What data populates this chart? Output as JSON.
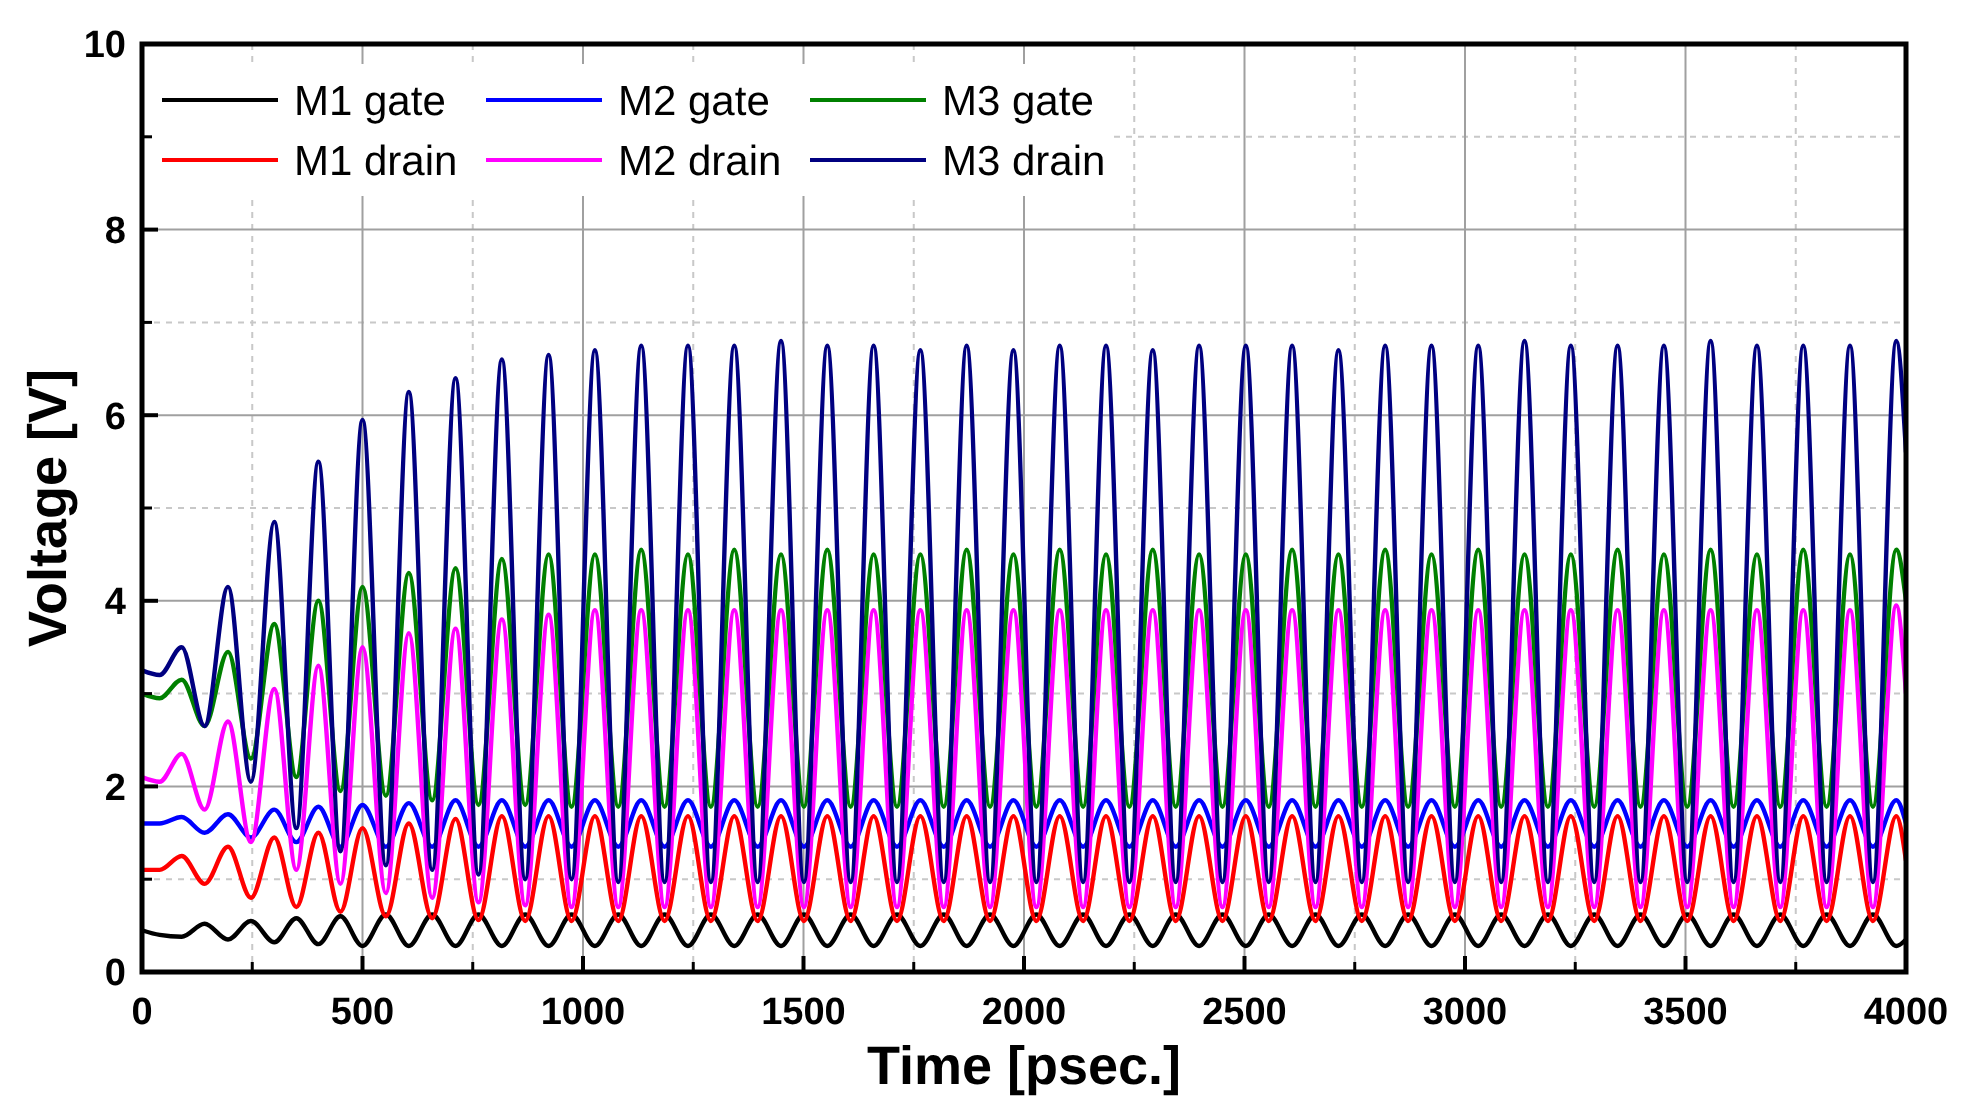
{
  "chart_data": {
    "type": "line",
    "xlabel": "Time [psec.]",
    "ylabel": "Voltage [V]",
    "x": [
      0,
      40,
      90,
      142,
      195,
      247,
      300,
      350,
      400,
      450,
      500,
      553,
      605,
      658,
      711,
      763,
      816,
      869,
      922,
      974,
      1027,
      1080,
      1132,
      1185,
      1238,
      1290,
      1343,
      1396,
      1449,
      1501,
      1554,
      1607,
      1659,
      1712,
      1765,
      1818,
      1870,
      1923,
      1976,
      2028,
      2081,
      2134,
      2186,
      2239,
      2292,
      2344,
      2397,
      2450,
      2503,
      2555,
      2608,
      2661,
      2713,
      2766,
      2819,
      2871,
      2924,
      2977,
      3030,
      3082,
      3135,
      3188,
      3240,
      3293,
      3346,
      3398,
      3451,
      3504,
      3557,
      3609,
      3662,
      3715,
      3767,
      3820,
      3873,
      3925,
      3978,
      4000
    ],
    "xlim": [
      0,
      4000
    ],
    "xticks": [
      0,
      500,
      1000,
      1500,
      2000,
      2500,
      3000,
      3500,
      4000
    ],
    "ylim": [
      0,
      10
    ],
    "yticks": [
      0,
      2,
      4,
      6,
      8,
      10
    ],
    "grid": true,
    "legend": "top left",
    "line_style": "solid",
    "marker": "none",
    "series": [
      {
        "name": "M1 gate",
        "color": "#000000",
        "values": [
          0.45,
          0.4,
          0.38,
          0.52,
          0.35,
          0.55,
          0.32,
          0.58,
          0.3,
          0.6,
          0.28,
          0.62,
          0.28,
          0.62,
          0.28,
          0.62,
          0.28,
          0.62,
          0.28,
          0.62,
          0.28,
          0.62,
          0.28,
          0.62,
          0.28,
          0.62,
          0.28,
          0.62,
          0.28,
          0.62,
          0.28,
          0.62,
          0.28,
          0.62,
          0.28,
          0.62,
          0.28,
          0.62,
          0.28,
          0.62,
          0.28,
          0.62,
          0.28,
          0.62,
          0.28,
          0.62,
          0.28,
          0.62,
          0.28,
          0.62,
          0.28,
          0.62,
          0.28,
          0.62,
          0.28,
          0.62,
          0.28,
          0.62,
          0.28,
          0.62,
          0.28,
          0.62,
          0.28,
          0.62,
          0.28,
          0.62,
          0.28,
          0.62,
          0.28,
          0.62,
          0.28,
          0.62,
          0.28,
          0.62,
          0.28,
          0.62,
          0.28,
          0.35
        ]
      },
      {
        "name": "M1 drain",
        "color": "#ff0000",
        "values": [
          1.1,
          1.1,
          1.25,
          0.95,
          1.35,
          0.8,
          1.45,
          0.7,
          1.5,
          0.65,
          1.55,
          0.6,
          1.6,
          0.58,
          1.65,
          0.56,
          1.68,
          0.55,
          1.68,
          0.55,
          1.68,
          0.55,
          1.68,
          0.55,
          1.68,
          0.55,
          1.68,
          0.55,
          1.68,
          0.55,
          1.68,
          0.55,
          1.68,
          0.55,
          1.68,
          0.55,
          1.68,
          0.55,
          1.68,
          0.55,
          1.68,
          0.55,
          1.68,
          0.55,
          1.68,
          0.55,
          1.68,
          0.55,
          1.68,
          0.55,
          1.68,
          0.55,
          1.68,
          0.55,
          1.68,
          0.55,
          1.68,
          0.55,
          1.68,
          0.55,
          1.68,
          0.55,
          1.68,
          0.55,
          1.68,
          0.55,
          1.68,
          0.55,
          1.68,
          0.55,
          1.68,
          0.55,
          1.68,
          0.55,
          1.68,
          0.55,
          1.68,
          1.2
        ]
      },
      {
        "name": "M2 gate",
        "color": "#0000ff",
        "values": [
          1.6,
          1.6,
          1.67,
          1.5,
          1.7,
          1.45,
          1.75,
          1.4,
          1.78,
          1.35,
          1.8,
          1.35,
          1.82,
          1.35,
          1.85,
          1.35,
          1.85,
          1.35,
          1.85,
          1.35,
          1.85,
          1.35,
          1.85,
          1.35,
          1.85,
          1.35,
          1.85,
          1.35,
          1.85,
          1.35,
          1.85,
          1.35,
          1.85,
          1.35,
          1.85,
          1.35,
          1.85,
          1.35,
          1.85,
          1.35,
          1.85,
          1.35,
          1.85,
          1.35,
          1.85,
          1.35,
          1.85,
          1.35,
          1.85,
          1.35,
          1.85,
          1.35,
          1.85,
          1.35,
          1.85,
          1.35,
          1.85,
          1.35,
          1.85,
          1.35,
          1.85,
          1.35,
          1.85,
          1.35,
          1.85,
          1.35,
          1.85,
          1.35,
          1.85,
          1.35,
          1.85,
          1.35,
          1.85,
          1.35,
          1.85,
          1.35,
          1.85,
          1.6
        ]
      },
      {
        "name": "M2 drain",
        "color": "#ff00ff",
        "values": [
          2.1,
          2.05,
          2.35,
          1.75,
          2.7,
          1.4,
          3.05,
          1.1,
          3.3,
          0.95,
          3.5,
          0.85,
          3.65,
          0.8,
          3.7,
          0.75,
          3.8,
          0.72,
          3.85,
          0.7,
          3.9,
          0.7,
          3.9,
          0.7,
          3.9,
          0.7,
          3.9,
          0.7,
          3.9,
          0.7,
          3.9,
          0.7,
          3.9,
          0.7,
          3.9,
          0.7,
          3.9,
          0.7,
          3.9,
          0.7,
          3.9,
          0.7,
          3.9,
          0.7,
          3.9,
          0.7,
          3.9,
          0.7,
          3.9,
          0.7,
          3.9,
          0.7,
          3.9,
          0.7,
          3.9,
          0.7,
          3.9,
          0.7,
          3.9,
          0.7,
          3.9,
          0.7,
          3.9,
          0.7,
          3.9,
          0.7,
          3.9,
          0.7,
          3.9,
          0.7,
          3.9,
          0.7,
          3.9,
          0.7,
          3.9,
          0.7,
          3.95,
          3.0
        ]
      },
      {
        "name": "M3 gate",
        "color": "#008000",
        "values": [
          3.0,
          2.95,
          3.15,
          2.65,
          3.45,
          2.3,
          3.75,
          2.1,
          4.0,
          1.95,
          4.15,
          1.9,
          4.3,
          1.85,
          4.35,
          1.8,
          4.45,
          1.8,
          4.5,
          1.78,
          4.5,
          1.78,
          4.55,
          1.78,
          4.5,
          1.78,
          4.55,
          1.78,
          4.5,
          1.78,
          4.55,
          1.78,
          4.5,
          1.78,
          4.5,
          1.78,
          4.55,
          1.78,
          4.5,
          1.78,
          4.55,
          1.78,
          4.5,
          1.78,
          4.55,
          1.78,
          4.5,
          1.78,
          4.5,
          1.78,
          4.55,
          1.78,
          4.5,
          1.78,
          4.55,
          1.78,
          4.5,
          1.78,
          4.55,
          1.78,
          4.5,
          1.78,
          4.5,
          1.78,
          4.55,
          1.78,
          4.5,
          1.78,
          4.55,
          1.78,
          4.5,
          1.78,
          4.55,
          1.78,
          4.5,
          1.78,
          4.55,
          4.0
        ]
      },
      {
        "name": "M3 drain",
        "color": "#000080",
        "values": [
          3.25,
          3.2,
          3.5,
          2.65,
          4.15,
          2.05,
          4.85,
          1.55,
          5.5,
          1.3,
          5.95,
          1.15,
          6.25,
          1.1,
          6.4,
          1.05,
          6.6,
          1.0,
          6.65,
          1.0,
          6.7,
          0.97,
          6.75,
          0.97,
          6.75,
          0.97,
          6.75,
          0.97,
          6.8,
          0.97,
          6.75,
          0.97,
          6.75,
          0.97,
          6.7,
          0.97,
          6.75,
          0.97,
          6.7,
          0.97,
          6.75,
          0.97,
          6.75,
          0.97,
          6.7,
          0.97,
          6.75,
          0.97,
          6.75,
          0.97,
          6.75,
          0.97,
          6.7,
          0.97,
          6.75,
          0.97,
          6.75,
          0.97,
          6.75,
          0.97,
          6.8,
          0.97,
          6.75,
          0.97,
          6.75,
          0.97,
          6.75,
          0.97,
          6.8,
          0.97,
          6.75,
          0.97,
          6.75,
          0.97,
          6.75,
          0.97,
          6.8,
          5.6
        ]
      }
    ]
  }
}
